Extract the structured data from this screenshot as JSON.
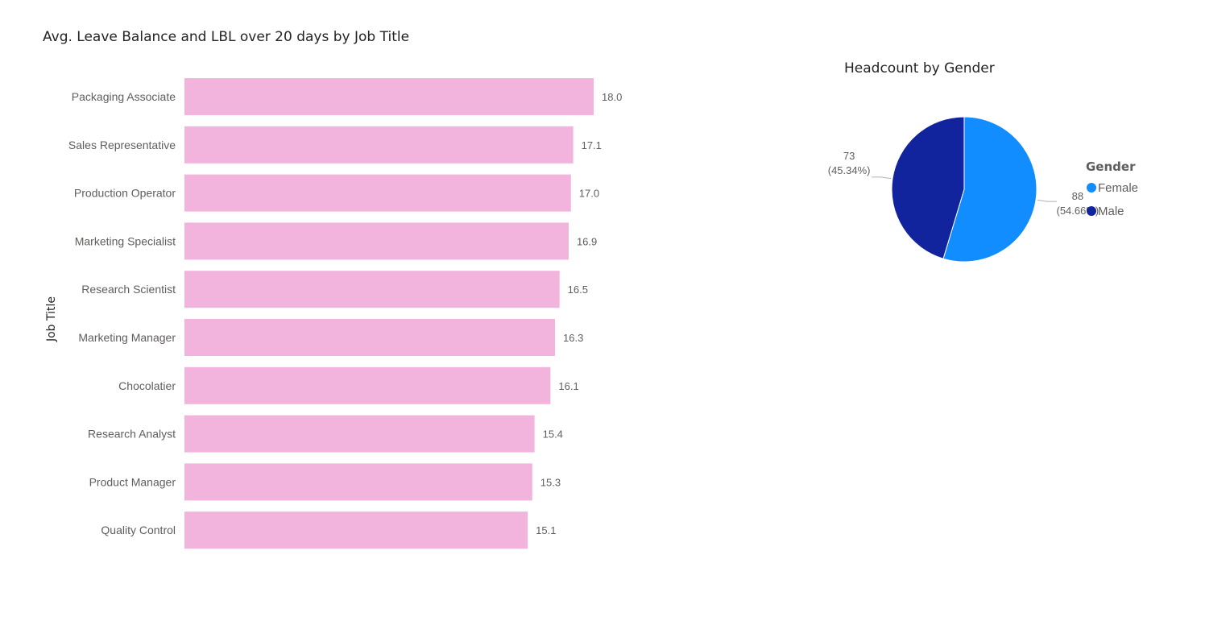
{
  "charts": {
    "bar": {
      "title": "Avg. Leave Balance and LBL over 20 days by Job Title"
    },
    "pie": {
      "title": "Headcount by Gender"
    }
  },
  "chart_data": [
    {
      "type": "bar",
      "orientation": "horizontal",
      "title": "Avg. Leave Balance and LBL over 20 days by Job Title",
      "ylabel": "Job Title",
      "xlabel": "",
      "xlim": [
        0,
        18
      ],
      "grid": false,
      "bar_color": "#f2b4dc",
      "categories": [
        "Packaging Associate",
        "Sales Representative",
        "Production Operator",
        "Marketing Specialist",
        "Research Scientist",
        "Marketing Manager",
        "Chocolatier",
        "Research Analyst",
        "Product Manager",
        "Quality Control"
      ],
      "values": [
        18.0,
        17.1,
        17.0,
        16.9,
        16.5,
        16.3,
        16.1,
        15.4,
        15.3,
        15.1
      ],
      "value_labels": [
        "18.0",
        "17.1",
        "17.0",
        "16.9",
        "16.5",
        "16.3",
        "16.1",
        "15.4",
        "15.3",
        "15.1"
      ]
    },
    {
      "type": "pie",
      "title": "Headcount by Gender",
      "legend_title": "Gender",
      "legend_position": "right",
      "slices": [
        {
          "name": "Female",
          "value": 88,
          "percent_label": "(54.66%)",
          "color": "#118dff"
        },
        {
          "name": "Male",
          "value": 73,
          "percent_label": "(45.34%)",
          "color": "#12239e"
        }
      ]
    }
  ]
}
